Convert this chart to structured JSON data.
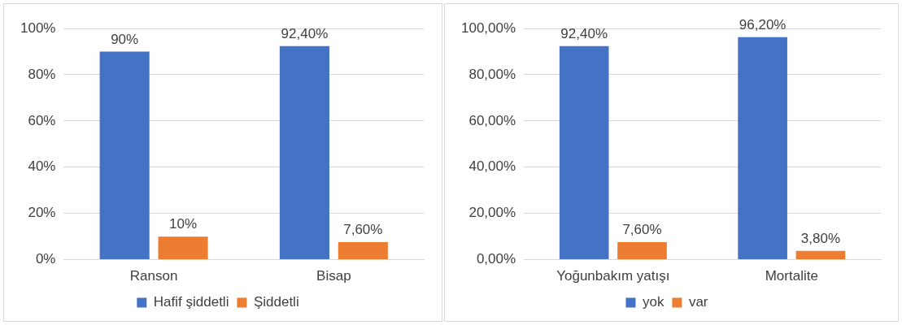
{
  "chart_data": [
    {
      "type": "bar",
      "categories": [
        "Ranson",
        "Bisap"
      ],
      "series": [
        {
          "name": "Hafif şiddetli",
          "color": "#4472c4",
          "values": [
            90,
            92.4
          ],
          "value_labels": [
            "90%",
            "92,40%"
          ]
        },
        {
          "name": "Şiddetli",
          "color": "#ed7d31",
          "values": [
            10,
            7.6
          ],
          "value_labels": [
            "10%",
            "7,60%"
          ]
        }
      ],
      "ylim": [
        0,
        100
      ],
      "yticks": [
        {
          "value": 0,
          "label": "0%"
        },
        {
          "value": 20,
          "label": "20%"
        },
        {
          "value": 40,
          "label": "40%"
        },
        {
          "value": 60,
          "label": "60%"
        },
        {
          "value": 80,
          "label": "80%"
        },
        {
          "value": 100,
          "label": "100%"
        }
      ],
      "grid": "y",
      "legend": "bottom"
    },
    {
      "type": "bar",
      "categories": [
        "Yoğunbakım yatışı",
        "Mortalite"
      ],
      "series": [
        {
          "name": "yok",
          "color": "#4472c4",
          "values": [
            92.4,
            96.2
          ],
          "value_labels": [
            "92,40%",
            "96,20%"
          ]
        },
        {
          "name": "var",
          "color": "#ed7d31",
          "values": [
            7.6,
            3.8
          ],
          "value_labels": [
            "7,60%",
            "3,80%"
          ]
        }
      ],
      "ylim": [
        0,
        100
      ],
      "yticks": [
        {
          "value": 0,
          "label": "0,00%"
        },
        {
          "value": 20,
          "label": "20,00%"
        },
        {
          "value": 40,
          "label": "40,00%"
        },
        {
          "value": 60,
          "label": "60,00%"
        },
        {
          "value": 80,
          "label": "80,00%"
        },
        {
          "value": 100,
          "label": "100,00%"
        }
      ],
      "grid": "y",
      "legend": "bottom"
    }
  ]
}
